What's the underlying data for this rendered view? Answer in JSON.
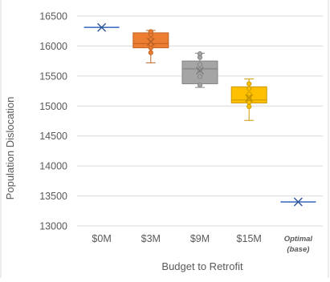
{
  "chart_data": {
    "type": "box",
    "title": "",
    "xlabel": "Budget to Retrofit",
    "ylabel": "Population Dislocation",
    "ylim": [
      13000,
      16500
    ],
    "yticks": [
      13000,
      13500,
      14000,
      14500,
      15000,
      15500,
      16000,
      16500
    ],
    "ytick_labels": [
      "13000",
      "13500",
      "14000",
      "14500",
      "15000",
      "15500",
      "16000",
      "16500"
    ],
    "grid": true,
    "legend": "none",
    "categories": [
      {
        "label": "$0M",
        "label_line2": ""
      },
      {
        "label": "$3M",
        "label_line2": ""
      },
      {
        "label": "$9M",
        "label_line2": ""
      },
      {
        "label": "$15M",
        "label_line2": ""
      },
      {
        "label": "Optimal",
        "label_line2": "(base)",
        "italic": true
      }
    ],
    "boxes": [
      {
        "category": "$0M",
        "kind": "single",
        "mean": 16310,
        "color": "#4472C4"
      },
      {
        "category": "$3M",
        "kind": "box",
        "q1": 15970,
        "median": 16040,
        "q3": 16220,
        "min": 15720,
        "max": 16260,
        "mean": 16070,
        "points": [
          15890,
          15970,
          16030,
          16110,
          16190,
          16240
        ],
        "color": "#ED7D31"
      },
      {
        "category": "$9M",
        "kind": "box",
        "q1": 15370,
        "median": 15620,
        "q3": 15750,
        "min": 15310,
        "max": 15880,
        "mean": 15590,
        "points": [
          15350,
          15490,
          15600,
          15690,
          15810,
          15870
        ],
        "color": "#A5A5A5"
      },
      {
        "category": "$15M",
        "kind": "box",
        "q1": 15050,
        "median": 15100,
        "q3": 15320,
        "min": 14760,
        "max": 15450,
        "mean": 15130,
        "points": [
          14990,
          15060,
          15130,
          15200,
          15290,
          15370
        ],
        "color": "#FFC000"
      },
      {
        "category": "Optimal (base)",
        "kind": "single",
        "mean": 13400,
        "color": "#4472C4"
      }
    ]
  },
  "colors": {
    "grid": "#D9D9D9",
    "axis_text": "#595959",
    "border": "#D9D9D9"
  }
}
